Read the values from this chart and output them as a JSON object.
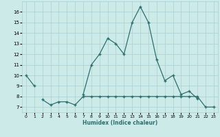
{
  "xlabel": "Humidex (Indice chaleur)",
  "x_values": [
    0,
    1,
    2,
    3,
    4,
    5,
    6,
    7,
    8,
    9,
    10,
    11,
    12,
    13,
    14,
    15,
    16,
    17,
    18,
    19,
    20,
    21,
    22,
    23
  ],
  "line1_y": [
    10.0,
    9.0,
    null,
    null,
    null,
    null,
    null,
    8.2,
    11.0,
    12.0,
    13.5,
    13.0,
    12.0,
    15.0,
    16.5,
    15.0,
    11.5,
    9.5,
    10.0,
    8.2,
    8.5,
    7.8,
    null,
    null
  ],
  "line2_y": [
    null,
    null,
    7.7,
    7.2,
    7.5,
    7.5,
    7.2,
    8.0,
    8.0,
    8.0,
    8.0,
    8.0,
    8.0,
    8.0,
    8.0,
    8.0,
    8.0,
    8.0,
    8.0,
    8.0,
    8.0,
    8.0,
    7.0,
    7.0
  ],
  "line_color": "#2d6e6e",
  "bg_color": "#cceae8",
  "grid_color": "#aacfcd",
  "xlim": [
    -0.5,
    23.5
  ],
  "ylim": [
    6.5,
    17.0
  ],
  "yticks": [
    7,
    8,
    9,
    10,
    11,
    12,
    13,
    14,
    15,
    16
  ],
  "xticks": [
    0,
    1,
    2,
    3,
    4,
    5,
    6,
    7,
    8,
    9,
    10,
    11,
    12,
    13,
    14,
    15,
    16,
    17,
    18,
    19,
    20,
    21,
    22,
    23
  ]
}
